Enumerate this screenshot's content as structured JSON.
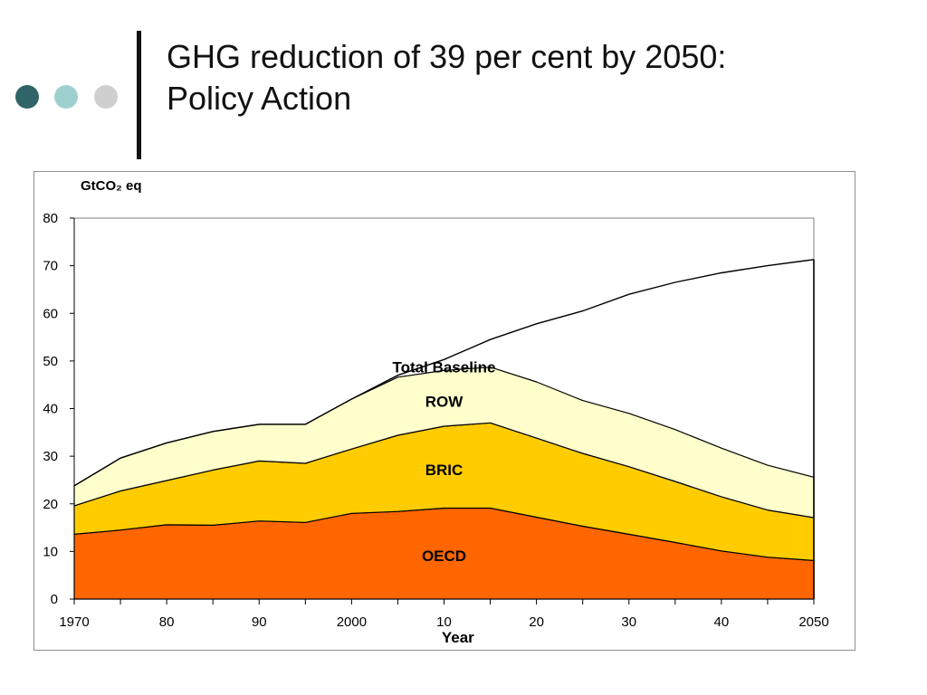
{
  "slide": {
    "title_line1": "GHG reduction of 39 per cent by 2050:",
    "title_line2": "Policy Action",
    "dot_colors": [
      "#2f6468",
      "#9fd0d0",
      "#cfcfcf"
    ]
  },
  "chart_data": {
    "type": "area",
    "stacked": true,
    "title": "",
    "xlabel": "Year",
    "ylabel": "GtCO₂ eq",
    "ylim": [
      0,
      80
    ],
    "xlim": [
      1970,
      2050
    ],
    "yticks": [
      0,
      10,
      20,
      30,
      40,
      50,
      60,
      70,
      80
    ],
    "xticks": [
      1970,
      1980,
      1990,
      2000,
      2010,
      2020,
      2030,
      2040,
      2050
    ],
    "xtick_labels": [
      "1970",
      "80",
      "90",
      "2000",
      "10",
      "20",
      "30",
      "40",
      "2050"
    ],
    "x": [
      1970,
      1975,
      1980,
      1985,
      1990,
      1995,
      2000,
      2005,
      2010,
      2015,
      2020,
      2025,
      2030,
      2035,
      2040,
      2045,
      2050
    ],
    "series": [
      {
        "name": "OECD",
        "label": "OECD",
        "color": "#ff6600",
        "values": [
          13.6,
          14.5,
          15.6,
          15.5,
          16.4,
          16.1,
          18.0,
          18.4,
          19.1,
          19.1,
          17.2,
          15.3,
          13.6,
          11.9,
          10.1,
          8.8,
          8.1
        ]
      },
      {
        "name": "BRIC",
        "label": "BRIC",
        "color": "#ffcc00",
        "values": [
          6.0,
          8.2,
          9.3,
          11.6,
          12.6,
          12.4,
          13.5,
          16.0,
          17.2,
          17.9,
          16.6,
          15.3,
          14.2,
          12.8,
          11.4,
          9.9,
          9.0
        ]
      },
      {
        "name": "ROW",
        "label": "ROW",
        "color": "#ffffcc",
        "values": [
          4.2,
          6.9,
          7.9,
          8.1,
          7.7,
          8.2,
          10.5,
          12.2,
          11.7,
          11.7,
          11.8,
          11.1,
          11.2,
          10.9,
          10.2,
          9.4,
          8.5
        ]
      }
    ],
    "total_baseline": {
      "name": "Total Baseline",
      "label": "Total Baseline",
      "values": [
        23.8,
        29.6,
        32.8,
        35.2,
        36.7,
        36.7,
        42.0,
        47.0,
        50.3,
        54.5,
        57.8,
        60.5,
        64.0,
        66.5,
        68.5,
        70.0,
        71.3
      ]
    }
  }
}
